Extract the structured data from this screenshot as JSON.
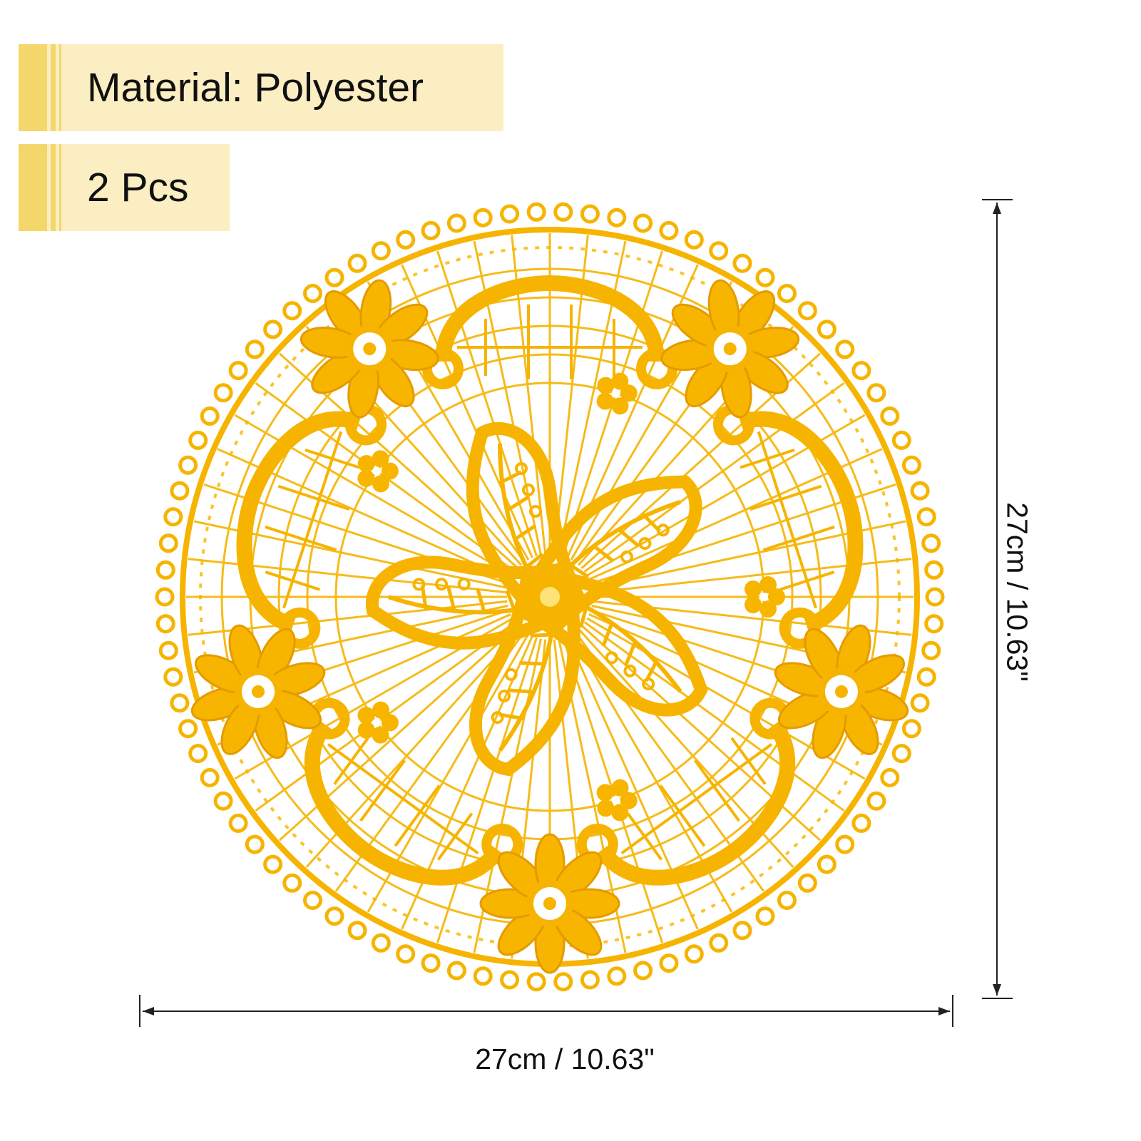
{
  "tags": {
    "material": "Material: Polyester",
    "quantity": "2 Pcs"
  },
  "dimensions": {
    "width": "27cm / 10.63\"",
    "height": "27cm / 10.63\""
  },
  "colors": {
    "lace": "#f6b400",
    "lace_light": "#ffd23a",
    "tag_bg": "#fbeec2",
    "tag_bar": "#f3d76a"
  }
}
